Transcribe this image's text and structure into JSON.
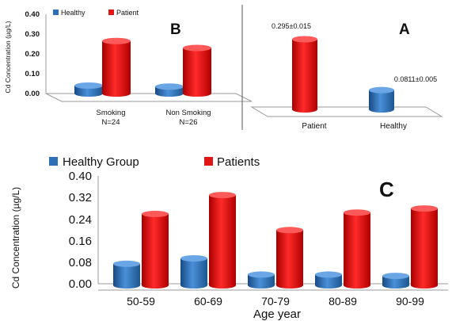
{
  "colors": {
    "healthy": "#2f6fb8",
    "patient": "#e01616"
  },
  "chart_data": [
    {
      "id": "B",
      "type": "bar",
      "panel_label": "B",
      "legend": [
        "Healthy",
        "Patient"
      ],
      "legend_position": "top-left",
      "ylabel": "Cd Concentration (µg/L)",
      "yticks": [
        "0.00",
        "0.10",
        "0.20",
        "0.30",
        "0.40"
      ],
      "ylim": [
        0,
        0.4
      ],
      "categories": [
        [
          "Smoking",
          "N=24"
        ],
        [
          "Non Smoking",
          "N=26"
        ]
      ],
      "series": [
        {
          "name": "Healthy",
          "values": [
            0.04,
            0.035
          ]
        },
        {
          "name": "Patient",
          "values": [
            0.265,
            0.23
          ]
        }
      ]
    },
    {
      "id": "A",
      "type": "bar",
      "panel_label": "A",
      "categories": [
        "Patient",
        "Healthy"
      ],
      "values": [
        0.295,
        0.0811
      ],
      "data_labels": [
        "0.295±0.015",
        "0.0811±0.005"
      ]
    },
    {
      "id": "C",
      "type": "bar",
      "panel_label": "C",
      "legend": [
        "Healthy Group",
        "Patients"
      ],
      "legend_position": "top-left",
      "ylabel": "Cd Concentration (µg/L)",
      "xlabel": "Age year",
      "yticks": [
        "0.00",
        "0.08",
        "0.16",
        "0.24",
        "0.32",
        "0.40"
      ],
      "ylim": [
        0,
        0.4
      ],
      "categories": [
        "50-59",
        "60-69",
        "70-79",
        "80-89",
        "90-99"
      ],
      "series": [
        {
          "name": "Healthy Group",
          "values": [
            0.08,
            0.1,
            0.04,
            0.04,
            0.035
          ]
        },
        {
          "name": "Patients",
          "values": [
            0.265,
            0.335,
            0.205,
            0.27,
            0.285
          ]
        }
      ]
    }
  ]
}
